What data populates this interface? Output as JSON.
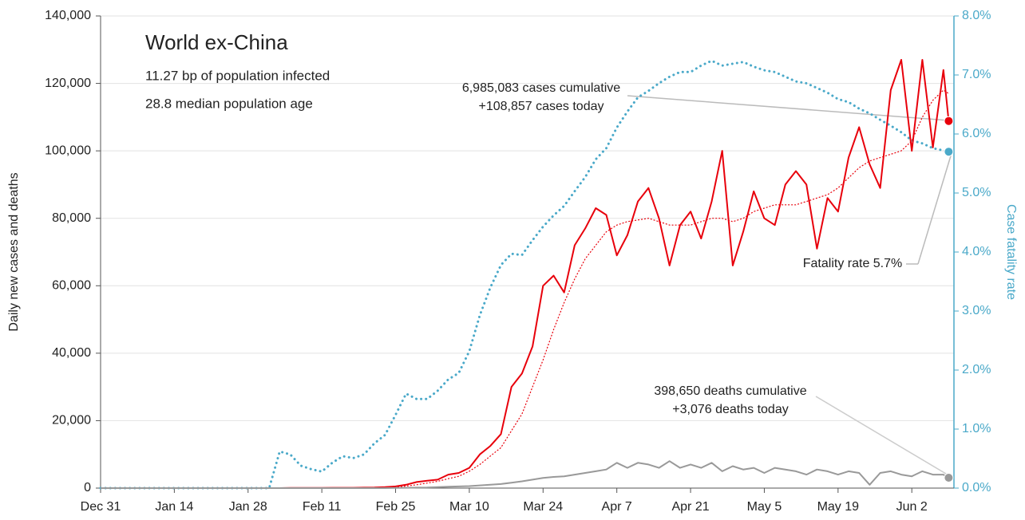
{
  "chart_data": {
    "type": "line",
    "title": "World ex-China",
    "subtitle": [
      "11.27 bp of population infected",
      "28.8 median population age"
    ],
    "ylabel": "Daily new cases and deaths",
    "y2label": "Case fatality rate",
    "x": [
      0,
      10,
      20,
      30,
      32,
      34,
      36,
      38,
      40,
      42,
      44,
      46,
      48,
      50,
      52,
      54,
      56,
      58,
      60,
      62,
      64,
      66,
      68,
      70,
      72,
      74,
      76,
      78,
      80,
      82,
      84,
      86,
      88,
      90,
      92,
      94,
      96,
      98,
      100,
      102,
      104,
      106,
      108,
      110,
      112,
      114,
      116,
      118,
      120,
      122,
      124,
      126,
      128,
      130,
      132,
      134,
      136,
      138,
      140,
      142,
      144,
      146,
      148,
      150,
      152,
      154,
      156,
      158,
      160,
      161
    ],
    "xlim": [
      0,
      162
    ],
    "xticks": [
      {
        "value": 0,
        "label": "Dec 31"
      },
      {
        "value": 14,
        "label": "Jan 14"
      },
      {
        "value": 28,
        "label": "Jan 28"
      },
      {
        "value": 42,
        "label": "Feb 11"
      },
      {
        "value": 56,
        "label": "Feb 25"
      },
      {
        "value": 70,
        "label": "Mar 10"
      },
      {
        "value": 84,
        "label": "Mar 24"
      },
      {
        "value": 98,
        "label": "Apr 7"
      },
      {
        "value": 112,
        "label": "Apr 21"
      },
      {
        "value": 126,
        "label": "May 5"
      },
      {
        "value": 140,
        "label": "May 19"
      },
      {
        "value": 154,
        "label": "Jun 2"
      }
    ],
    "ylim": [
      0,
      140000
    ],
    "yticks": [
      0,
      {
        "value": 20000,
        "label": "20,000"
      },
      {
        "value": 40000,
        "label": "40,000"
      },
      {
        "value": 60000,
        "label": "60,000"
      },
      {
        "value": 80000,
        "label": "80,000"
      },
      {
        "value": 100000,
        "label": "100,000"
      },
      {
        "value": 120000,
        "label": "120,000"
      },
      {
        "value": 140000,
        "label": "140,000"
      }
    ],
    "y2lim": [
      0,
      8
    ],
    "y2ticks": [
      {
        "value": 0,
        "label": "0.0%"
      },
      {
        "value": 1,
        "label": "1.0%"
      },
      {
        "value": 2,
        "label": "2.0%"
      },
      {
        "value": 3,
        "label": "3.0%"
      },
      {
        "value": 4,
        "label": "4.0%"
      },
      {
        "value": 5,
        "label": "5.0%"
      },
      {
        "value": 6,
        "label": "6.0%"
      },
      {
        "value": 7,
        "label": "7.0%"
      },
      {
        "value": 8,
        "label": "8.0%"
      }
    ],
    "grid": true,
    "y2color": "#4aa9c9",
    "series": [
      {
        "color": "#4aa9c9",
        "dashed": true,
        "width": 3,
        "axis": "y2",
        "end_dot": true,
        "values": [
          0,
          0,
          0,
          0,
          0,
          0.62,
          0.57,
          0.38,
          0.32,
          0.28,
          0.43,
          0.54,
          0.51,
          0.57,
          0.76,
          0.9,
          1.24,
          1.6,
          1.51,
          1.51,
          1.65,
          1.84,
          1.95,
          2.32,
          2.93,
          3.4,
          3.78,
          3.97,
          3.95,
          4.2,
          4.43,
          4.62,
          4.78,
          5.03,
          5.27,
          5.57,
          5.76,
          6.11,
          6.38,
          6.62,
          6.73,
          6.86,
          6.97,
          7.05,
          7.05,
          7.16,
          7.24,
          7.16,
          7.19,
          7.22,
          7.14,
          7.08,
          7.05,
          6.97,
          6.89,
          6.86,
          6.78,
          6.7,
          6.59,
          6.54,
          6.43,
          6.35,
          6.24,
          6.14,
          6.03,
          5.89,
          5.84,
          5.76,
          5.72,
          5.7
        ]
      },
      {
        "color": "#e8000b",
        "dashed": true,
        "width": 1.2,
        "values": [
          0,
          0,
          0,
          0,
          0,
          0,
          20,
          30,
          40,
          50,
          60,
          80,
          100,
          120,
          150,
          200,
          300,
          600,
          1000,
          1500,
          2000,
          2800,
          3500,
          5000,
          7000,
          9500,
          12000,
          17000,
          22000,
          30000,
          38000,
          47000,
          55000,
          62000,
          68000,
          72000,
          76000,
          78000,
          79000,
          79500,
          80000,
          79000,
          78000,
          78000,
          78000,
          79000,
          80000,
          80000,
          79000,
          80000,
          82000,
          83000,
          84000,
          84000,
          84000,
          85000,
          86000,
          87000,
          89000,
          92000,
          95000,
          97000,
          98000,
          99000,
          100000,
          103000,
          110000,
          115000,
          118000,
          117000
        ]
      },
      {
        "color": "#e8000b",
        "dashed": false,
        "width": 2,
        "end_dot": true,
        "values": [
          0,
          0,
          0,
          0,
          0,
          0,
          50,
          50,
          50,
          50,
          100,
          100,
          100,
          150,
          200,
          300,
          500,
          1000,
          1800,
          2200,
          2500,
          4000,
          4500,
          6000,
          10000,
          12500,
          16000,
          30000,
          34000,
          42000,
          60000,
          63000,
          58000,
          72000,
          77000,
          83000,
          81000,
          69000,
          75000,
          85000,
          89000,
          80000,
          66000,
          78000,
          82000,
          74000,
          85000,
          100000,
          66000,
          76000,
          88000,
          80000,
          78000,
          90000,
          94000,
          90000,
          71000,
          86000,
          82000,
          98000,
          107000,
          96000,
          89000,
          118000,
          127000,
          100000,
          127000,
          101000,
          124000,
          108857
        ]
      },
      {
        "color": "#999999",
        "dashed": false,
        "width": 2,
        "end_dot": true,
        "values": [
          0,
          0,
          0,
          0,
          0,
          0,
          0,
          0,
          0,
          0,
          0,
          0,
          0,
          0,
          0,
          0,
          50,
          100,
          150,
          200,
          300,
          400,
          500,
          600,
          800,
          1000,
          1200,
          1600,
          2000,
          2500,
          3000,
          3300,
          3500,
          4000,
          4500,
          5000,
          5500,
          7500,
          6000,
          7500,
          7000,
          6000,
          8000,
          6000,
          7000,
          6000,
          7500,
          5000,
          6500,
          5500,
          6000,
          4500,
          6000,
          5500,
          5000,
          4000,
          5500,
          5000,
          4000,
          5000,
          4500,
          1000,
          4500,
          5000,
          4000,
          3500,
          5000,
          4000,
          4000,
          3076
        ]
      }
    ],
    "annotations": [
      "6,985,083 cases cumulative",
      "+108,857 cases today",
      "Fatality rate 5.7%",
      "398,650 deaths cumulative",
      "+3,076 deaths today"
    ]
  }
}
